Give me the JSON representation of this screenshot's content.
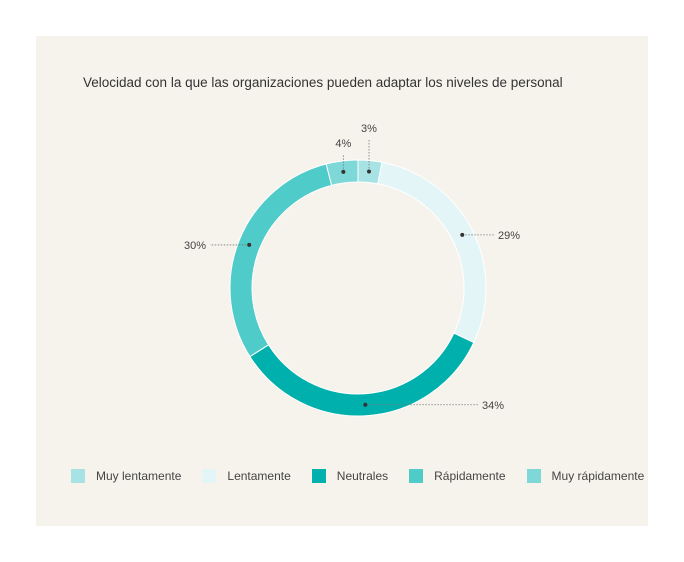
{
  "chart_data": {
    "type": "pie",
    "variant": "donut",
    "title": "Velocidad con la que las organizaciones pueden adaptar los niveles de personal",
    "categories": [
      "Muy lentamente",
      "Lentamente",
      "Neutrales",
      "Rápidamente",
      "Muy rápidamente"
    ],
    "values": [
      3,
      29,
      34,
      30,
      4
    ],
    "labels": [
      "3%",
      "29%",
      "34%",
      "30%",
      "4%"
    ],
    "colors": [
      "#a7e3e4",
      "#e3f5f6",
      "#00b0ac",
      "#4fcbc9",
      "#7fd8d8"
    ],
    "legend_position": "bottom"
  }
}
